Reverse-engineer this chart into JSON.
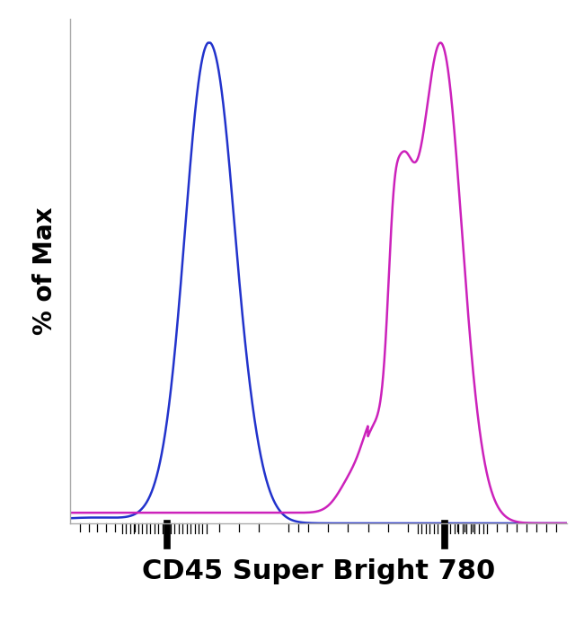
{
  "title": "",
  "xlabel": "CD45 Super Bright 780",
  "ylabel": "% of Max",
  "xlabel_fontsize": 22,
  "ylabel_fontsize": 20,
  "background_color": "#ffffff",
  "plot_bg_color": "#ffffff",
  "blue_color": "#2233cc",
  "magenta_color": "#cc22bb",
  "xlim": [
    0.0,
    1.0
  ],
  "ylim": [
    0.0,
    1.05
  ],
  "linewidth": 1.8,
  "spine_color": "#aaaaaa",
  "figsize": [
    6.5,
    6.94
  ],
  "dpi": 100
}
